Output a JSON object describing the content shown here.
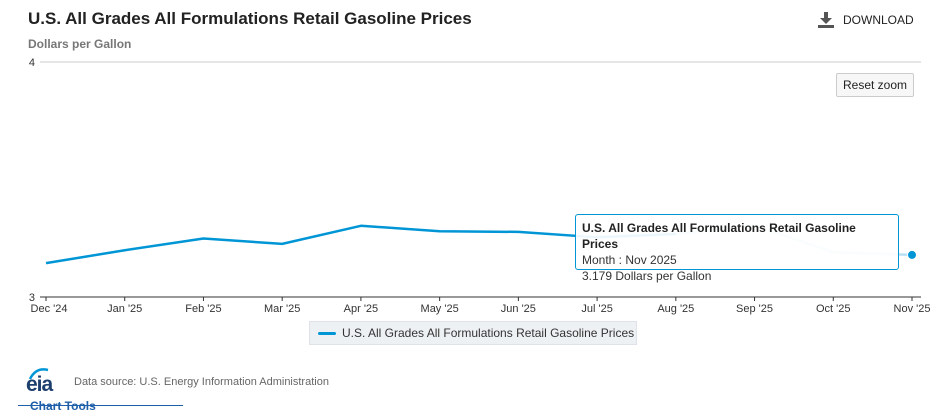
{
  "header": {
    "title": "U.S. All Grades All Formulations Retail Gasoline Prices",
    "units": "Dollars per Gallon",
    "download_label": "DOWNLOAD",
    "reset_zoom_label": "Reset zoom"
  },
  "tooltip": {
    "title": "U.S. All Grades All Formulations Retail Gasoline Prices",
    "month_line": "Month : Nov 2025",
    "value_line": "3.179 Dollars per Gallon"
  },
  "legend": {
    "label": "U.S. All Grades All Formulations Retail Gasoline Prices"
  },
  "footer": {
    "logo_text": "eia",
    "source": "Data source: U.S. Energy Information Administration",
    "chart_tools": "Chart Tools"
  },
  "colors": {
    "series": "#0096d6",
    "series_faded": "#b9dff3",
    "grid": "#cccccc",
    "axis": "#333333"
  },
  "chart_data": {
    "type": "line",
    "title": "U.S. All Grades All Formulations Retail Gasoline Prices",
    "ylabel": "Dollars per Gallon",
    "ylim": [
      3,
      4
    ],
    "yticks": [
      "3",
      "4"
    ],
    "categories": [
      "Dec '24",
      "Jan '25",
      "Feb '25",
      "Mar '25",
      "Apr '25",
      "May '25",
      "Jun '25",
      "Jul '25",
      "Aug '25",
      "Sep '25",
      "Oct '25",
      "Nov '25"
    ],
    "series": [
      {
        "name": "U.S. All Grades All Formulations Retail Gasoline Prices",
        "values": [
          3.144,
          3.199,
          3.249,
          3.226,
          3.303,
          3.28,
          3.277,
          3.254,
          3.268,
          3.305,
          3.19,
          3.179
        ]
      }
    ],
    "highlighted_index": 11,
    "grid": false,
    "legend_position": "bottom-center"
  }
}
